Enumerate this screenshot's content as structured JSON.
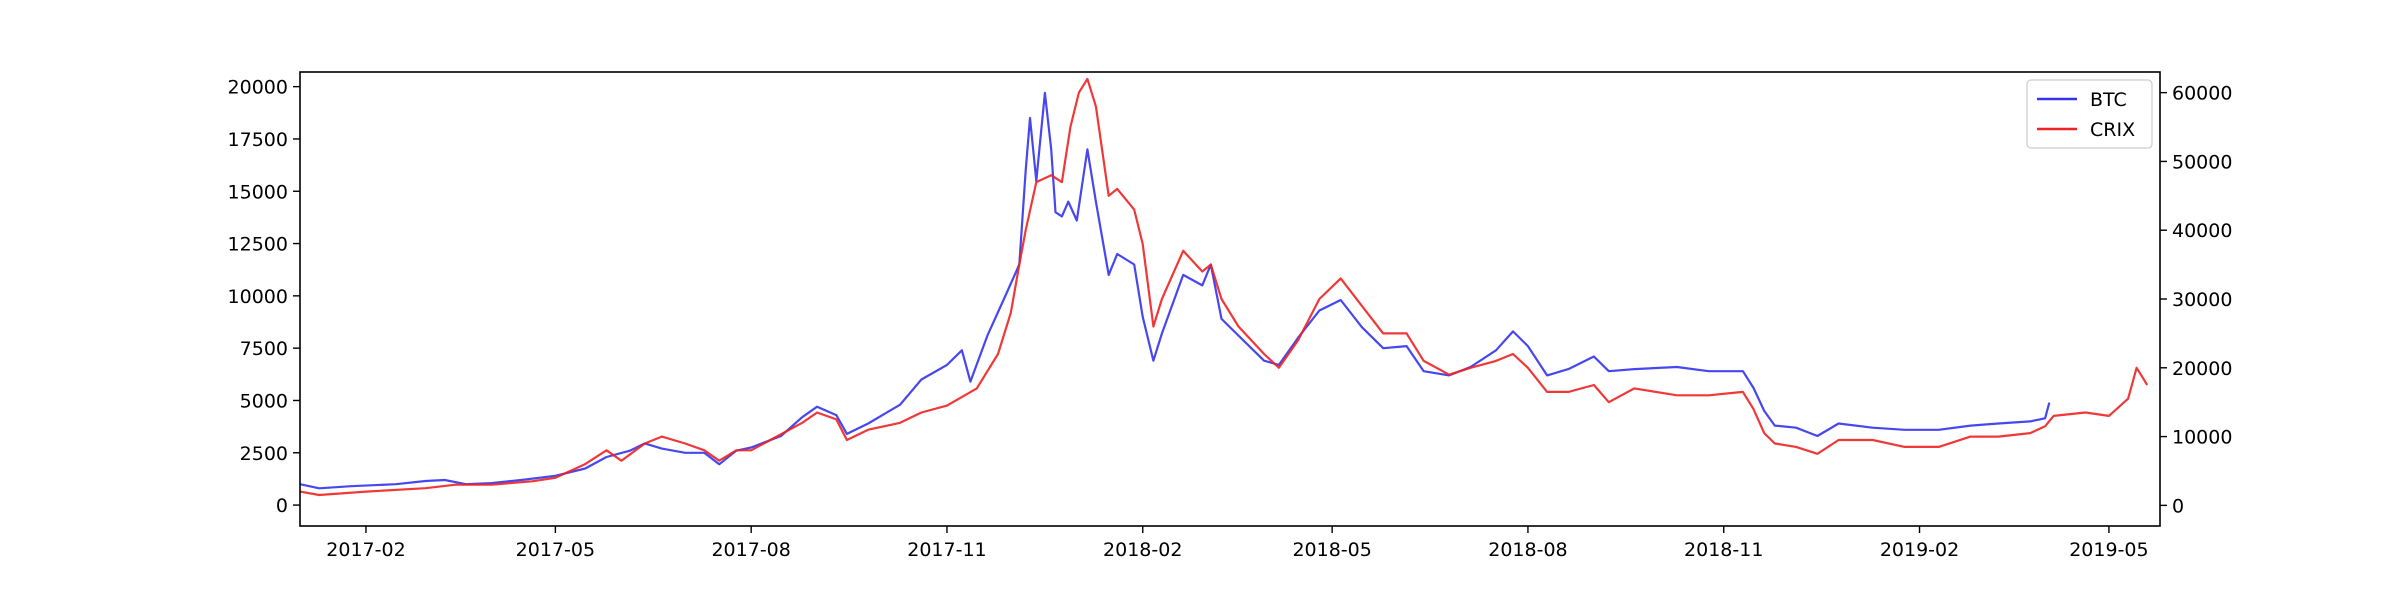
{
  "chart_data": {
    "type": "line",
    "title": "",
    "xlabel": "",
    "ylabel_left": "",
    "ylabel_right": "",
    "x_range": [
      "2017-01-01",
      "2019-05-25"
    ],
    "x_ticks": [
      "2017-02",
      "2017-05",
      "2017-08",
      "2017-11",
      "2018-02",
      "2018-05",
      "2018-08",
      "2018-11",
      "2019-02",
      "2019-05"
    ],
    "y_left": {
      "ylim": [
        -1000,
        20700
      ],
      "ticks": [
        0,
        2500,
        5000,
        7500,
        10000,
        12500,
        15000,
        17500,
        20000
      ]
    },
    "y_right": {
      "ylim": [
        -3000,
        63000
      ],
      "ticks": [
        0,
        10000,
        20000,
        30000,
        40000,
        50000,
        60000
      ]
    },
    "legend": {
      "position": "top-right"
    },
    "grid": false,
    "series": [
      {
        "name": "BTC",
        "axis": "left",
        "color": "#3333ee",
        "points": [
          [
            "2017-01-01",
            1000
          ],
          [
            "2017-01-10",
            800
          ],
          [
            "2017-01-25",
            900
          ],
          [
            "2017-02-15",
            1000
          ],
          [
            "2017-03-01",
            1150
          ],
          [
            "2017-03-10",
            1200
          ],
          [
            "2017-03-20",
            1000
          ],
          [
            "2017-04-01",
            1050
          ],
          [
            "2017-04-15",
            1200
          ],
          [
            "2017-05-01",
            1400
          ],
          [
            "2017-05-15",
            1750
          ],
          [
            "2017-05-25",
            2300
          ],
          [
            "2017-06-05",
            2600
          ],
          [
            "2017-06-12",
            2950
          ],
          [
            "2017-06-20",
            2700
          ],
          [
            "2017-07-01",
            2500
          ],
          [
            "2017-07-10",
            2500
          ],
          [
            "2017-07-17",
            1950
          ],
          [
            "2017-07-25",
            2600
          ],
          [
            "2017-08-01",
            2750
          ],
          [
            "2017-08-15",
            3300
          ],
          [
            "2017-08-25",
            4200
          ],
          [
            "2017-09-01",
            4700
          ],
          [
            "2017-09-10",
            4300
          ],
          [
            "2017-09-15",
            3400
          ],
          [
            "2017-09-25",
            3900
          ],
          [
            "2017-10-10",
            4800
          ],
          [
            "2017-10-20",
            6000
          ],
          [
            "2017-11-01",
            6700
          ],
          [
            "2017-11-08",
            7400
          ],
          [
            "2017-11-12",
            5900
          ],
          [
            "2017-11-20",
            8100
          ],
          [
            "2017-11-28",
            9900
          ],
          [
            "2017-12-05",
            11500
          ],
          [
            "2017-12-08",
            16000
          ],
          [
            "2017-12-10",
            18500
          ],
          [
            "2017-12-13",
            15500
          ],
          [
            "2017-12-17",
            19700
          ],
          [
            "2017-12-20",
            17000
          ],
          [
            "2017-12-22",
            14000
          ],
          [
            "2017-12-25",
            13800
          ],
          [
            "2017-12-28",
            14500
          ],
          [
            "2018-01-01",
            13600
          ],
          [
            "2018-01-06",
            17000
          ],
          [
            "2018-01-10",
            14500
          ],
          [
            "2018-01-16",
            11000
          ],
          [
            "2018-01-20",
            12000
          ],
          [
            "2018-01-28",
            11500
          ],
          [
            "2018-02-01",
            9000
          ],
          [
            "2018-02-06",
            6900
          ],
          [
            "2018-02-10",
            8200
          ],
          [
            "2018-02-20",
            11000
          ],
          [
            "2018-03-01",
            10500
          ],
          [
            "2018-03-05",
            11500
          ],
          [
            "2018-03-10",
            8900
          ],
          [
            "2018-03-18",
            8100
          ],
          [
            "2018-03-30",
            6900
          ],
          [
            "2018-04-06",
            6700
          ],
          [
            "2018-04-15",
            8000
          ],
          [
            "2018-04-25",
            9300
          ],
          [
            "2018-05-05",
            9800
          ],
          [
            "2018-05-15",
            8500
          ],
          [
            "2018-05-25",
            7500
          ],
          [
            "2018-06-05",
            7600
          ],
          [
            "2018-06-13",
            6400
          ],
          [
            "2018-06-25",
            6200
          ],
          [
            "2018-07-05",
            6600
          ],
          [
            "2018-07-17",
            7400
          ],
          [
            "2018-07-25",
            8300
          ],
          [
            "2018-08-01",
            7600
          ],
          [
            "2018-08-10",
            6200
          ],
          [
            "2018-08-20",
            6500
          ],
          [
            "2018-09-01",
            7100
          ],
          [
            "2018-09-08",
            6400
          ],
          [
            "2018-09-20",
            6500
          ],
          [
            "2018-10-10",
            6600
          ],
          [
            "2018-10-25",
            6400
          ],
          [
            "2018-11-10",
            6400
          ],
          [
            "2018-11-15",
            5600
          ],
          [
            "2018-11-20",
            4500
          ],
          [
            "2018-11-25",
            3800
          ],
          [
            "2018-12-05",
            3700
          ],
          [
            "2018-12-15",
            3300
          ],
          [
            "2018-12-25",
            3900
          ],
          [
            "2019-01-10",
            3700
          ],
          [
            "2019-01-25",
            3600
          ],
          [
            "2019-02-10",
            3600
          ],
          [
            "2019-02-25",
            3800
          ],
          [
            "2019-03-10",
            3900
          ],
          [
            "2019-03-25",
            4000
          ],
          [
            "2019-04-01",
            4150
          ],
          [
            "2019-04-03",
            4900
          ]
        ]
      },
      {
        "name": "CRIX",
        "axis": "right",
        "color": "#ee2222",
        "points": [
          [
            "2017-01-01",
            2000
          ],
          [
            "2017-01-10",
            1500
          ],
          [
            "2017-02-01",
            2000
          ],
          [
            "2017-03-01",
            2500
          ],
          [
            "2017-03-15",
            3000
          ],
          [
            "2017-04-01",
            3000
          ],
          [
            "2017-04-20",
            3500
          ],
          [
            "2017-05-01",
            4000
          ],
          [
            "2017-05-15",
            6000
          ],
          [
            "2017-05-25",
            8000
          ],
          [
            "2017-06-01",
            6500
          ],
          [
            "2017-06-12",
            9000
          ],
          [
            "2017-06-20",
            10000
          ],
          [
            "2017-07-01",
            9000
          ],
          [
            "2017-07-10",
            8000
          ],
          [
            "2017-07-17",
            6500
          ],
          [
            "2017-07-25",
            8000
          ],
          [
            "2017-08-01",
            8000
          ],
          [
            "2017-08-10",
            9500
          ],
          [
            "2017-08-25",
            12000
          ],
          [
            "2017-09-01",
            13500
          ],
          [
            "2017-09-10",
            12500
          ],
          [
            "2017-09-15",
            9500
          ],
          [
            "2017-09-25",
            11000
          ],
          [
            "2017-10-10",
            12000
          ],
          [
            "2017-10-20",
            13500
          ],
          [
            "2017-11-01",
            14500
          ],
          [
            "2017-11-15",
            17000
          ],
          [
            "2017-11-25",
            22000
          ],
          [
            "2017-12-01",
            28000
          ],
          [
            "2017-12-05",
            35000
          ],
          [
            "2017-12-08",
            40000
          ],
          [
            "2017-12-13",
            47000
          ],
          [
            "2017-12-20",
            48000
          ],
          [
            "2017-12-25",
            47000
          ],
          [
            "2017-12-29",
            55000
          ],
          [
            "2018-01-02",
            60000
          ],
          [
            "2018-01-06",
            62000
          ],
          [
            "2018-01-10",
            58000
          ],
          [
            "2018-01-16",
            45000
          ],
          [
            "2018-01-20",
            46000
          ],
          [
            "2018-01-28",
            43000
          ],
          [
            "2018-02-01",
            38000
          ],
          [
            "2018-02-06",
            26000
          ],
          [
            "2018-02-10",
            30000
          ],
          [
            "2018-02-20",
            37000
          ],
          [
            "2018-03-01",
            34000
          ],
          [
            "2018-03-05",
            35000
          ],
          [
            "2018-03-10",
            30000
          ],
          [
            "2018-03-18",
            26000
          ],
          [
            "2018-03-30",
            22000
          ],
          [
            "2018-04-06",
            20000
          ],
          [
            "2018-04-15",
            24000
          ],
          [
            "2018-04-25",
            30000
          ],
          [
            "2018-05-05",
            33000
          ],
          [
            "2018-05-15",
            29000
          ],
          [
            "2018-05-25",
            25000
          ],
          [
            "2018-06-05",
            25000
          ],
          [
            "2018-06-13",
            21000
          ],
          [
            "2018-06-25",
            19000
          ],
          [
            "2018-07-05",
            20000
          ],
          [
            "2018-07-17",
            21000
          ],
          [
            "2018-07-25",
            22000
          ],
          [
            "2018-08-01",
            20000
          ],
          [
            "2018-08-10",
            16500
          ],
          [
            "2018-08-20",
            16500
          ],
          [
            "2018-09-01",
            17500
          ],
          [
            "2018-09-08",
            15000
          ],
          [
            "2018-09-20",
            17000
          ],
          [
            "2018-10-10",
            16000
          ],
          [
            "2018-10-25",
            16000
          ],
          [
            "2018-11-10",
            16500
          ],
          [
            "2018-11-15",
            14000
          ],
          [
            "2018-11-20",
            10500
          ],
          [
            "2018-11-25",
            9000
          ],
          [
            "2018-12-05",
            8500
          ],
          [
            "2018-12-15",
            7500
          ],
          [
            "2018-12-25",
            9500
          ],
          [
            "2019-01-10",
            9500
          ],
          [
            "2019-01-25",
            8500
          ],
          [
            "2019-02-10",
            8500
          ],
          [
            "2019-02-25",
            10000
          ],
          [
            "2019-03-10",
            10000
          ],
          [
            "2019-03-25",
            10500
          ],
          [
            "2019-04-01",
            11500
          ],
          [
            "2019-04-05",
            13000
          ],
          [
            "2019-04-20",
            13500
          ],
          [
            "2019-05-01",
            13000
          ],
          [
            "2019-05-10",
            15500
          ],
          [
            "2019-05-14",
            20000
          ],
          [
            "2019-05-17",
            18500
          ],
          [
            "2019-05-19",
            17500
          ]
        ]
      }
    ]
  }
}
